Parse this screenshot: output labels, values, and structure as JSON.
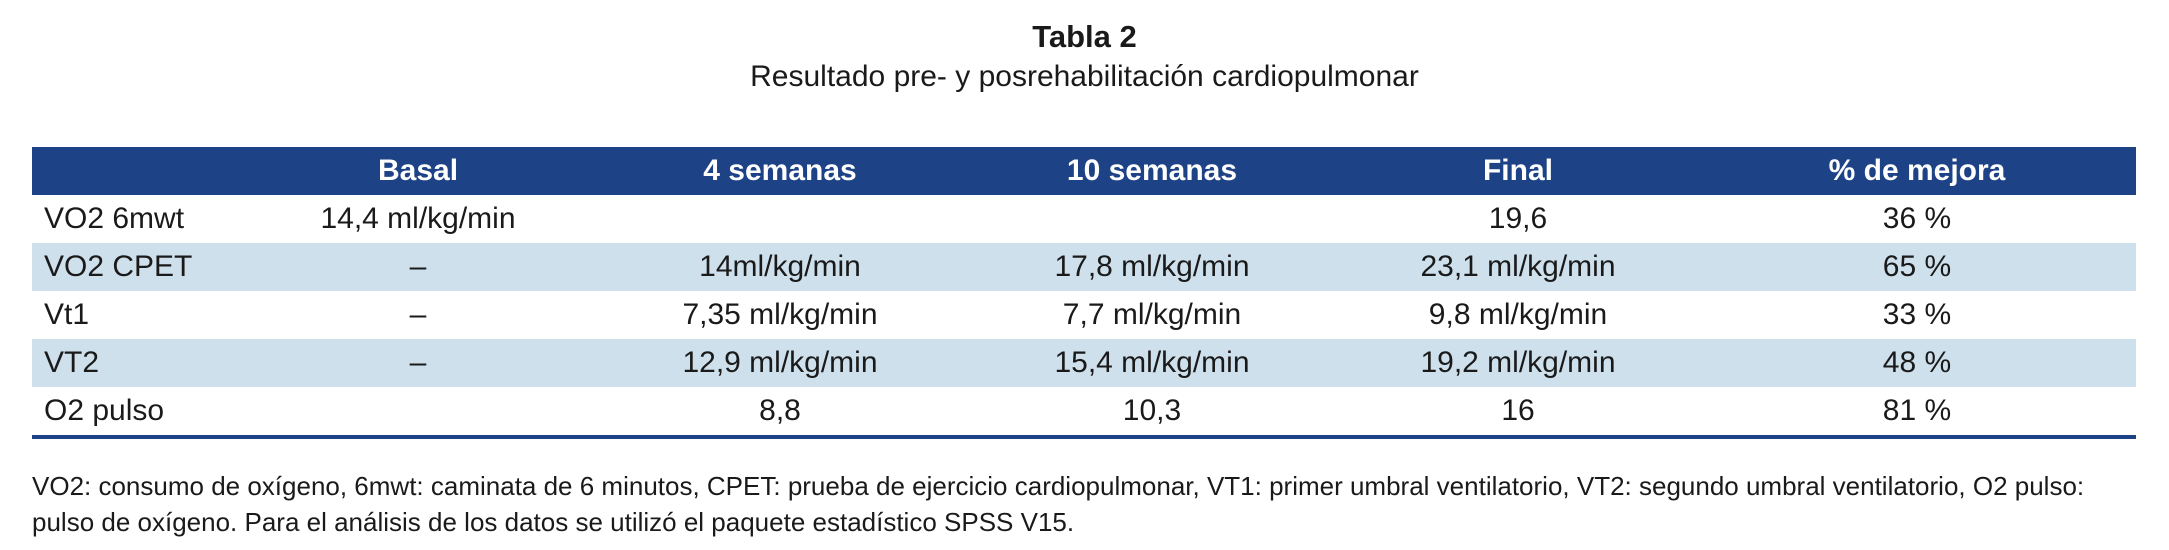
{
  "caption": {
    "title": "Tabla 2",
    "subtitle": "Resultado pre- y posrehabilitación cardiopulmonar"
  },
  "table": {
    "headers": [
      "",
      "Basal",
      "4 semanas",
      "10 semanas",
      "Final",
      "% de mejora"
    ],
    "rows": [
      [
        "VO2 6mwt",
        "14,4 ml/kg/min",
        "",
        "",
        "19,6",
        "36 %"
      ],
      [
        "VO2 CPET",
        "–",
        "14ml/kg/min",
        "17,8 ml/kg/min",
        "23,1 ml/kg/min",
        "65 %"
      ],
      [
        "Vt1",
        "–",
        "7,35 ml/kg/min",
        "7,7 ml/kg/min",
        "9,8 ml/kg/min",
        "33 %"
      ],
      [
        "VT2",
        "–",
        "12,9 ml/kg/min",
        "15,4 ml/kg/min",
        "19,2 ml/kg/min",
        "48 %"
      ],
      [
        "O2 pulso",
        "",
        "8,8",
        "10,3",
        "16",
        "81 %"
      ]
    ]
  },
  "footnote": "VO2: consumo de oxígeno, 6mwt: caminata de 6 minutos, CPET: prueba de ejercicio cardiopulmonar, VT1: primer umbral ventilatorio, VT2: segundo umbral ventilatorio, O2 pulso: pulso de oxígeno. Para el análisis de los datos se utilizó el paquete estadístico SPSS V15.",
  "colors": {
    "header_background": "#1d4285",
    "header_text": "#ffffff",
    "stripe_background": "#cfe0ed"
  }
}
